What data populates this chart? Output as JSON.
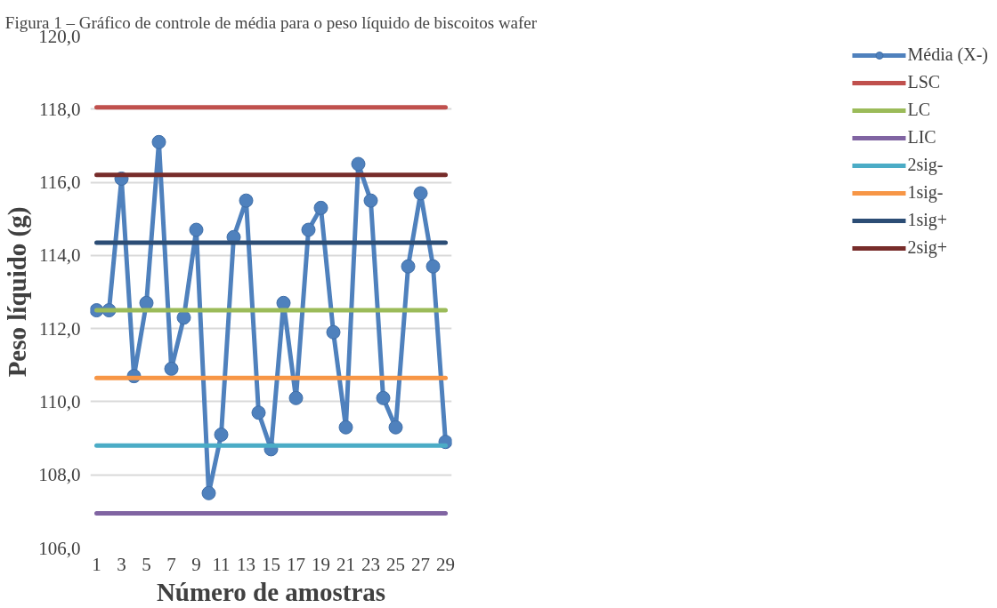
{
  "chart_data": {
    "type": "line",
    "title": "Figura 1 – Gráfico de controle de média para o peso líquido de biscoitos wafer",
    "xlabel": "Número de amostras",
    "ylabel": "Peso líquido (g)",
    "x": [
      1,
      2,
      3,
      4,
      5,
      6,
      7,
      8,
      9,
      10,
      11,
      12,
      13,
      14,
      15,
      16,
      17,
      18,
      19,
      20,
      21,
      22,
      23,
      24,
      25,
      26,
      27,
      28,
      29
    ],
    "xlim": [
      0.5,
      29.5
    ],
    "xticks": [
      1,
      3,
      5,
      7,
      9,
      11,
      13,
      15,
      17,
      19,
      21,
      23,
      25,
      27,
      29
    ],
    "ylim": [
      106,
      120
    ],
    "yticks": [
      {
        "value": 106,
        "label": "106,0"
      },
      {
        "value": 108,
        "label": "108,0"
      },
      {
        "value": 110,
        "label": "110,0"
      },
      {
        "value": 112,
        "label": "112,0"
      },
      {
        "value": 114,
        "label": "114,0"
      },
      {
        "value": 116,
        "label": "116,0"
      },
      {
        "value": 118,
        "label": "118,0"
      },
      {
        "value": 120,
        "label": "120,0"
      }
    ],
    "grid": "y",
    "legend": "right",
    "series": [
      {
        "name": "Média (X-)",
        "color": "#4f81bd",
        "marker": "circle",
        "values": [
          112.5,
          112.5,
          116.1,
          110.7,
          112.7,
          117.1,
          110.9,
          112.3,
          114.7,
          107.5,
          109.1,
          114.5,
          115.5,
          109.7,
          108.7,
          112.7,
          110.1,
          114.7,
          115.3,
          111.9,
          109.3,
          116.5,
          115.5,
          110.1,
          109.3,
          113.7,
          115.7,
          113.7,
          108.9
        ]
      },
      {
        "name": "LSC",
        "color": "#c0504d",
        "marker": "none",
        "values": [
          118.05,
          118.05,
          118.05,
          118.05,
          118.05,
          118.05,
          118.05,
          118.05,
          118.05,
          118.05,
          118.05,
          118.05,
          118.05,
          118.05,
          118.05,
          118.05,
          118.05,
          118.05,
          118.05,
          118.05,
          118.05,
          118.05,
          118.05,
          118.05,
          118.05,
          118.05,
          118.05,
          118.05,
          118.05
        ]
      },
      {
        "name": "LC",
        "color": "#9bbb59",
        "marker": "none",
        "values": [
          112.5,
          112.5,
          112.5,
          112.5,
          112.5,
          112.5,
          112.5,
          112.5,
          112.5,
          112.5,
          112.5,
          112.5,
          112.5,
          112.5,
          112.5,
          112.5,
          112.5,
          112.5,
          112.5,
          112.5,
          112.5,
          112.5,
          112.5,
          112.5,
          112.5,
          112.5,
          112.5,
          112.5,
          112.5
        ]
      },
      {
        "name": "LIC",
        "color": "#8064a2",
        "marker": "none",
        "values": [
          106.95,
          106.95,
          106.95,
          106.95,
          106.95,
          106.95,
          106.95,
          106.95,
          106.95,
          106.95,
          106.95,
          106.95,
          106.95,
          106.95,
          106.95,
          106.95,
          106.95,
          106.95,
          106.95,
          106.95,
          106.95,
          106.95,
          106.95,
          106.95,
          106.95,
          106.95,
          106.95,
          106.95,
          106.95
        ]
      },
      {
        "name": "2sig-",
        "color": "#4bacc6",
        "marker": "none",
        "values": [
          108.8,
          108.8,
          108.8,
          108.8,
          108.8,
          108.8,
          108.8,
          108.8,
          108.8,
          108.8,
          108.8,
          108.8,
          108.8,
          108.8,
          108.8,
          108.8,
          108.8,
          108.8,
          108.8,
          108.8,
          108.8,
          108.8,
          108.8,
          108.8,
          108.8,
          108.8,
          108.8,
          108.8,
          108.8
        ]
      },
      {
        "name": "1sig-",
        "color": "#f79646",
        "marker": "none",
        "values": [
          110.65,
          110.65,
          110.65,
          110.65,
          110.65,
          110.65,
          110.65,
          110.65,
          110.65,
          110.65,
          110.65,
          110.65,
          110.65,
          110.65,
          110.65,
          110.65,
          110.65,
          110.65,
          110.65,
          110.65,
          110.65,
          110.65,
          110.65,
          110.65,
          110.65,
          110.65,
          110.65,
          110.65,
          110.65
        ]
      },
      {
        "name": "1sig+",
        "color": "#2c4d75",
        "marker": "none",
        "values": [
          114.35,
          114.35,
          114.35,
          114.35,
          114.35,
          114.35,
          114.35,
          114.35,
          114.35,
          114.35,
          114.35,
          114.35,
          114.35,
          114.35,
          114.35,
          114.35,
          114.35,
          114.35,
          114.35,
          114.35,
          114.35,
          114.35,
          114.35,
          114.35,
          114.35,
          114.35,
          114.35,
          114.35,
          114.35
        ]
      },
      {
        "name": "2sig+",
        "color": "#772c2a",
        "marker": "none",
        "values": [
          116.2,
          116.2,
          116.2,
          116.2,
          116.2,
          116.2,
          116.2,
          116.2,
          116.2,
          116.2,
          116.2,
          116.2,
          116.2,
          116.2,
          116.2,
          116.2,
          116.2,
          116.2,
          116.2,
          116.2,
          116.2,
          116.2,
          116.2,
          116.2,
          116.2,
          116.2,
          116.2,
          116.2,
          116.2
        ]
      }
    ]
  }
}
